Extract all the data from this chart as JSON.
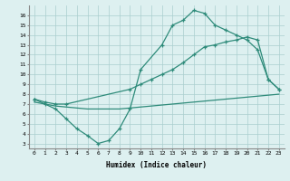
{
  "line1_x": [
    0,
    1,
    2,
    3,
    4,
    5,
    6,
    7,
    8,
    9,
    10,
    12,
    13,
    14,
    15,
    16,
    17,
    18,
    19,
    20,
    21,
    22,
    23
  ],
  "line1_y": [
    7.5,
    7.0,
    6.5,
    5.5,
    4.5,
    3.8,
    3.0,
    3.3,
    4.5,
    6.5,
    10.5,
    13.0,
    15.0,
    15.5,
    16.5,
    16.2,
    15.0,
    14.5,
    14.0,
    13.5,
    12.5,
    9.5,
    8.5
  ],
  "line2_x": [
    0,
    1,
    2,
    3,
    9,
    10,
    11,
    12,
    13,
    14,
    15,
    16,
    17,
    18,
    19,
    20,
    21,
    22,
    23
  ],
  "line2_y": [
    7.5,
    7.2,
    7.0,
    7.0,
    8.5,
    9.0,
    9.5,
    10.0,
    10.5,
    11.2,
    12.0,
    12.8,
    13.0,
    13.3,
    13.5,
    13.8,
    13.5,
    9.5,
    8.5
  ],
  "line3_x": [
    0,
    1,
    2,
    3,
    4,
    5,
    6,
    7,
    8,
    9,
    10,
    11,
    12,
    13,
    14,
    15,
    16,
    17,
    18,
    19,
    20,
    21,
    22,
    23
  ],
  "line3_y": [
    7.2,
    7.0,
    6.8,
    6.7,
    6.6,
    6.5,
    6.5,
    6.5,
    6.5,
    6.6,
    6.7,
    6.8,
    6.9,
    7.0,
    7.1,
    7.2,
    7.3,
    7.4,
    7.5,
    7.6,
    7.7,
    7.8,
    7.9,
    8.0
  ],
  "color": "#2e8b7a",
  "bg_color": "#ddf0f0",
  "grid_color": "#aacece",
  "xlabel": "Humidex (Indice chaleur)",
  "xlim": [
    -0.5,
    23.5
  ],
  "ylim": [
    2.5,
    17
  ],
  "yticks": [
    3,
    4,
    5,
    6,
    7,
    8,
    9,
    10,
    11,
    12,
    13,
    14,
    15,
    16
  ],
  "xticks": [
    0,
    1,
    2,
    3,
    4,
    5,
    6,
    7,
    8,
    9,
    10,
    11,
    12,
    13,
    14,
    15,
    16,
    17,
    18,
    19,
    20,
    21,
    22,
    23
  ],
  "xtick_labels": [
    "0",
    "1",
    "2",
    "3",
    "4",
    "5",
    "6",
    "7",
    "8",
    "9",
    "10",
    "11",
    "12",
    "13",
    "14",
    "15",
    "16",
    "17",
    "18",
    "19",
    "20",
    "21",
    "22",
    "23"
  ]
}
